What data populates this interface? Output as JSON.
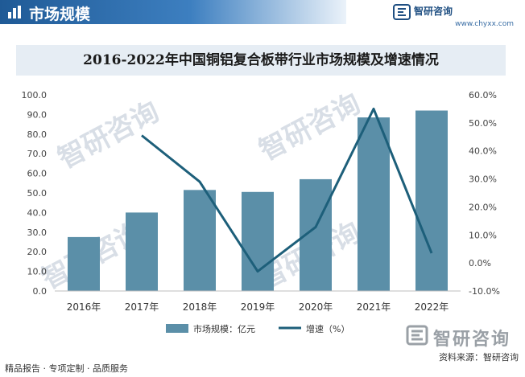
{
  "header": {
    "title": "市场规模"
  },
  "brand": {
    "name": "智研咨询",
    "url": "www.chyxx.com"
  },
  "chart_data": {
    "type": "bar+line",
    "title": "2016-2022年中国铜铝复合板带行业市场规模及增速情况",
    "categories": [
      "2016年",
      "2017年",
      "2018年",
      "2019年",
      "2020年",
      "2021年",
      "2022年"
    ],
    "series": [
      {
        "name": "市场规模：亿元",
        "type": "bar",
        "axis": "left",
        "values": [
          27.5,
          40.0,
          51.5,
          50.5,
          57.0,
          88.5,
          92.0
        ],
        "color": "#5b8fa8"
      },
      {
        "name": "增速（%）",
        "type": "line",
        "axis": "right",
        "values": [
          null,
          45.5,
          29.0,
          -3.0,
          12.8,
          55.0,
          3.5
        ],
        "color": "#1d5f7a"
      }
    ],
    "y_left": {
      "min": 0,
      "max": 100,
      "step": 10,
      "tick_labels": [
        "0.0",
        "10.0",
        "20.0",
        "30.0",
        "40.0",
        "50.0",
        "60.0",
        "70.0",
        "80.0",
        "90.0",
        "100.0"
      ]
    },
    "y_right": {
      "min": -10,
      "max": 60,
      "step": 10,
      "tick_labels": [
        "-10.0%",
        "0.0%",
        "10.0%",
        "20.0%",
        "30.0%",
        "40.0%",
        "50.0%",
        "60.0%"
      ]
    },
    "grid": false,
    "legend_position": "bottom"
  },
  "footer": {
    "left": "精品报告 · 专项定制 · 品质服务",
    "source": "资料来源：智研咨询",
    "brand": "智研咨询"
  },
  "colors": {
    "accent": "#1f5a96",
    "bar": "#5b8fa8",
    "line": "#1d5f7a"
  }
}
